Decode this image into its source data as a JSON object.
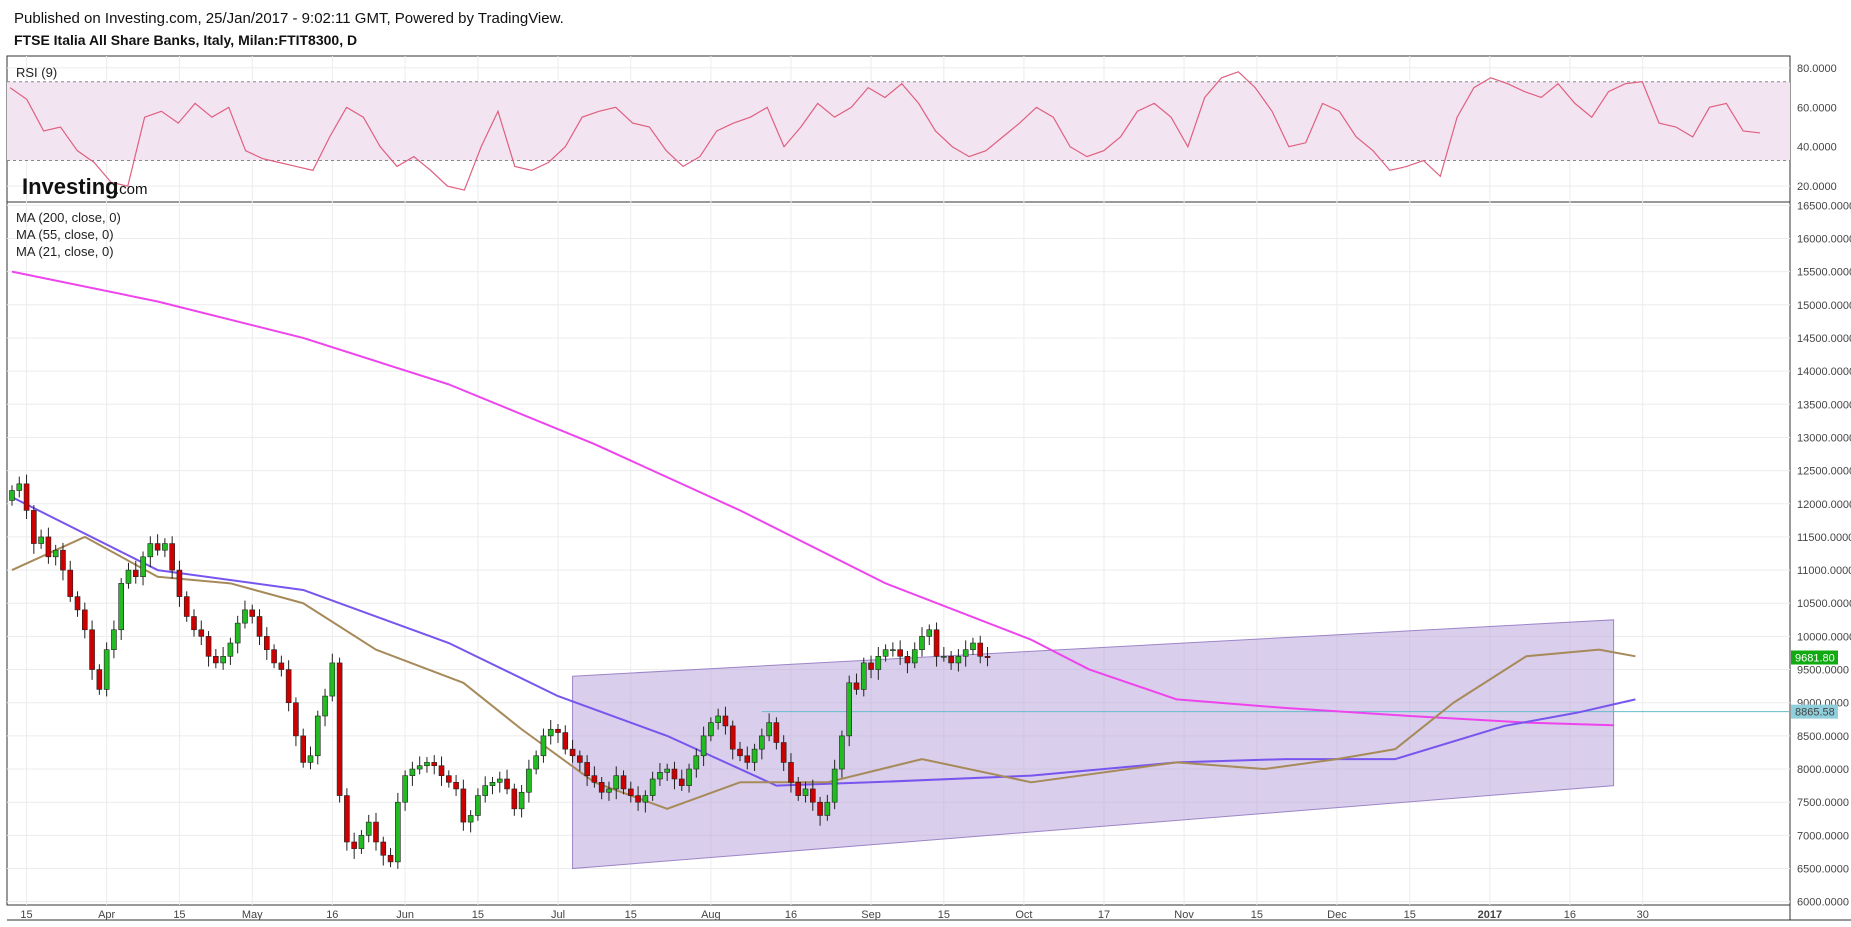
{
  "header": {
    "published": "Published on Investing.com, 25/Jan/2017 - 9:02:11 GMT, Powered by TradingView.",
    "instrument": "FTSE Italia All Share Banks, Italy, Milan:FTIT8300, D"
  },
  "logo": {
    "brand": "Investing",
    "suffix": ".com"
  },
  "colors": {
    "up": "#22bb22",
    "down": "#cc0000",
    "ma200": "#ee44ee",
    "ma55": "#7755ee",
    "ma21": "#a68a5a",
    "rsi": "#e06080",
    "channel": "#b9a6da",
    "hline": "#66bbcc"
  },
  "chart_data": [
    {
      "type": "line",
      "name": "rsi-panel",
      "legend": "RSI (9)",
      "ylim": [
        15,
        83
      ],
      "yticks": [
        20,
        40,
        60,
        80
      ],
      "ytick_labels": [
        "20.0000",
        "40.0000",
        "60.0000",
        "80.0000"
      ],
      "bands": {
        "upper": 73,
        "lower": 33
      },
      "values": [
        70,
        64,
        48,
        50,
        38,
        32,
        22,
        20,
        55,
        58,
        52,
        62,
        55,
        60,
        38,
        34,
        32,
        30,
        28,
        45,
        60,
        55,
        40,
        30,
        35,
        28,
        20,
        18,
        40,
        58,
        30,
        28,
        32,
        40,
        55,
        58,
        60,
        52,
        50,
        38,
        30,
        35,
        48,
        52,
        55,
        60,
        40,
        50,
        62,
        55,
        60,
        70,
        65,
        72,
        62,
        48,
        40,
        35,
        38,
        45,
        52,
        60,
        55,
        40,
        35,
        38,
        45,
        58,
        62,
        55,
        40,
        65,
        75,
        78,
        70,
        58,
        40,
        42,
        62,
        58,
        45,
        38,
        28,
        30,
        33,
        25,
        55,
        70,
        75,
        72,
        68,
        65,
        72,
        62,
        55,
        68,
        72,
        73,
        52,
        50,
        45,
        60,
        62,
        48,
        47
      ]
    },
    {
      "type": "candlestick",
      "name": "price-panel",
      "legend": [
        "MA (200, close, 0)",
        "MA (55, close, 0)",
        "MA (21, close, 0)"
      ],
      "ylim": [
        5950,
        16550
      ],
      "yticks": [
        6000,
        6500,
        7000,
        7500,
        8000,
        8500,
        9000,
        9500,
        10000,
        10500,
        11000,
        11500,
        12000,
        12500,
        13000,
        13500,
        14000,
        14500,
        15000,
        15500,
        16000,
        16500
      ],
      "ytick_labels": [
        "6000.0000",
        "6500.0000",
        "7000.0000",
        "7500.0000",
        "8000.0000",
        "8500.0000",
        "9000.0000",
        "9500.0000",
        "10000.0000",
        "10500.0000",
        "11000.0000",
        "11500.0000",
        "12000.0000",
        "12500.0000",
        "13000.0000",
        "13500.0000",
        "14000.0000",
        "14500.0000",
        "15000.0000",
        "15500.0000",
        "16000.0000",
        "16500.0000"
      ],
      "x_ticks": [
        {
          "label": "15",
          "i": 2
        },
        {
          "label": "Apr",
          "i": 13
        },
        {
          "label": "15",
          "i": 23
        },
        {
          "label": "May",
          "i": 33
        },
        {
          "label": "16",
          "i": 44
        },
        {
          "label": "Jun",
          "i": 54
        },
        {
          "label": "15",
          "i": 64
        },
        {
          "label": "Jul",
          "i": 75
        },
        {
          "label": "15",
          "i": 85
        },
        {
          "label": "Aug",
          "i": 96
        },
        {
          "label": "16",
          "i": 107
        },
        {
          "label": "Sep",
          "i": 118
        },
        {
          "label": "15",
          "i": 128
        },
        {
          "label": "Oct",
          "i": 139
        },
        {
          "label": "17",
          "i": 150
        },
        {
          "label": "Nov",
          "i": 161
        },
        {
          "label": "15",
          "i": 171
        },
        {
          "label": "Dec",
          "i": 182
        },
        {
          "label": "15",
          "i": 192
        },
        {
          "label": "2017",
          "i": 203,
          "bold": true
        },
        {
          "label": "16",
          "i": 214
        },
        {
          "label": "30",
          "i": 224
        }
      ],
      "closes": [
        12200,
        12300,
        11900,
        11400,
        11500,
        11200,
        11300,
        11000,
        10600,
        10400,
        10100,
        9500,
        9200,
        9800,
        10100,
        10800,
        11000,
        10900,
        11200,
        11400,
        11300,
        11400,
        11000,
        10600,
        10300,
        10100,
        10000,
        9700,
        9600,
        9700,
        9900,
        10200,
        10400,
        10300,
        10000,
        9800,
        9600,
        9500,
        9000,
        8500,
        8100,
        8200,
        8800,
        9100,
        9600,
        7600,
        6900,
        6800,
        7000,
        7200,
        6900,
        6700,
        6600,
        7500,
        7900,
        8000,
        8050,
        8100,
        8050,
        7900,
        7800,
        7700,
        7200,
        7300,
        7600,
        7750,
        7800,
        7850,
        7700,
        7400,
        7650,
        8000,
        8200,
        8500,
        8600,
        8550,
        8300,
        8200,
        8100,
        7900,
        7800,
        7650,
        7700,
        7900,
        7700,
        7600,
        7500,
        7600,
        7850,
        7950,
        8000,
        7850,
        7750,
        8000,
        8200,
        8500,
        8700,
        8800,
        8650,
        8300,
        8200,
        8100,
        8300,
        8500,
        8700,
        8400,
        8100,
        7800,
        7600,
        7700,
        7500,
        7300,
        7500,
        8000,
        8500,
        9300,
        9200,
        9600,
        9500,
        9700,
        9800,
        9800,
        9700,
        9600,
        9800,
        10000,
        10100,
        9700,
        9700,
        9600,
        9700,
        9800,
        9900,
        9700,
        9680
      ],
      "ma200": [
        [
          0,
          15500
        ],
        [
          20,
          15050
        ],
        [
          40,
          14500
        ],
        [
          60,
          13800
        ],
        [
          80,
          12900
        ],
        [
          100,
          11900
        ],
        [
          120,
          10800
        ],
        [
          140,
          9950
        ],
        [
          148,
          9500
        ],
        [
          160,
          9050
        ],
        [
          175,
          8920
        ],
        [
          192,
          8800
        ],
        [
          208,
          8700
        ],
        [
          220,
          8660
        ]
      ],
      "ma55": [
        [
          0,
          12100
        ],
        [
          20,
          11000
        ],
        [
          40,
          10700
        ],
        [
          60,
          9900
        ],
        [
          75,
          9100
        ],
        [
          90,
          8500
        ],
        [
          105,
          7750
        ],
        [
          118,
          7800
        ],
        [
          140,
          7900
        ],
        [
          160,
          8100
        ],
        [
          175,
          8150
        ],
        [
          190,
          8150
        ],
        [
          205,
          8650
        ],
        [
          215,
          8850
        ],
        [
          223,
          9050
        ]
      ],
      "ma21": [
        [
          0,
          11000
        ],
        [
          10,
          11500
        ],
        [
          20,
          10900
        ],
        [
          30,
          10800
        ],
        [
          40,
          10500
        ],
        [
          50,
          9800
        ],
        [
          62,
          9300
        ],
        [
          70,
          8600
        ],
        [
          80,
          7800
        ],
        [
          90,
          7400
        ],
        [
          100,
          7800
        ],
        [
          112,
          7800
        ],
        [
          125,
          8150
        ],
        [
          140,
          7800
        ],
        [
          160,
          8100
        ],
        [
          172,
          8000
        ],
        [
          182,
          8150
        ],
        [
          190,
          8300
        ],
        [
          198,
          9000
        ],
        [
          208,
          9700
        ],
        [
          218,
          9800
        ],
        [
          223,
          9700
        ]
      ],
      "channel": {
        "start": [
          77,
          6500,
          9400
        ],
        "end": [
          220,
          7750,
          10250
        ]
      },
      "hline": {
        "value": 8865.58,
        "from": 103
      },
      "last_price": {
        "value": 9681.8,
        "label": "9681.80"
      },
      "hline_label": "8865.58"
    }
  ]
}
